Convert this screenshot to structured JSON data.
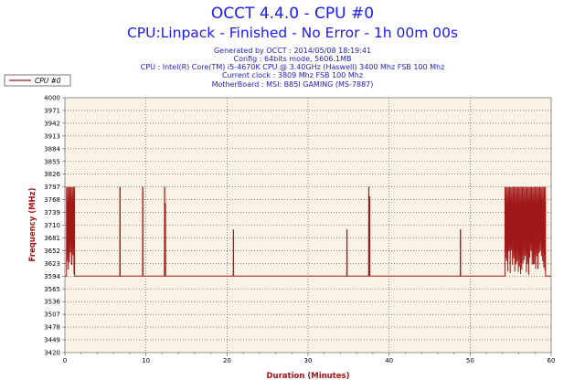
{
  "header": {
    "title": "OCCT 4.4.0 - CPU #0",
    "subtitle": "CPU:Linpack - Finished - No Error - 1h 00m 00s",
    "info_lines": [
      "Generated by OCCT : 2014/05/08 18:19:41",
      "Config : 64bits mode, 5606.1MB",
      "CPU : Intel(R) Core(TM) i5-4670K CPU @ 3.40GHz (Haswell) 3400 Mhz FSB 100 Mhz",
      "Current clock : 3809 Mhz FSB 100 Mhz",
      "MotherBoard : MSI: B85I GAMING (MS-7887)"
    ]
  },
  "colors": {
    "series": "#a01818",
    "plot_bg": "#fbf2e6",
    "title": "#1a1aff",
    "info": "#2020d0",
    "axis_label": "#b01010"
  },
  "chart_data": {
    "type": "line",
    "title": "OCCT 4.4.0 - CPU #0",
    "xlabel": "Duration (Minutes)",
    "ylabel": "Frequency (MHz)",
    "xlim": [
      0,
      60
    ],
    "ylim": [
      3420,
      4000
    ],
    "x_ticks": [
      0,
      10,
      20,
      30,
      40,
      50,
      60
    ],
    "y_ticks": [
      3420,
      3449,
      3478,
      3507,
      3536,
      3565,
      3594,
      3623,
      3652,
      3681,
      3710,
      3739,
      3768,
      3797,
      3826,
      3855,
      3884,
      3913,
      3942,
      3971,
      4000
    ],
    "grid": true,
    "legend_position": "top-left",
    "baseline": 3594,
    "high": 3797,
    "series": [
      {
        "name": "CPU #0",
        "spikes": [
          {
            "x": 6.8,
            "y": 3797
          },
          {
            "x": 9.6,
            "y": 3797
          },
          {
            "x": 12.3,
            "y": 3797
          },
          {
            "x": 12.4,
            "y": 3760
          },
          {
            "x": 20.8,
            "y": 3700
          },
          {
            "x": 34.8,
            "y": 3700
          },
          {
            "x": 37.5,
            "y": 3797
          },
          {
            "x": 37.6,
            "y": 3775
          },
          {
            "x": 48.8,
            "y": 3700
          }
        ],
        "bursts": [
          {
            "start": 0.2,
            "end": 1.2,
            "high": 3797,
            "low": 3594
          },
          {
            "start": 54.3,
            "end": 59.3,
            "high": 3797,
            "low": 3594
          }
        ]
      }
    ]
  }
}
